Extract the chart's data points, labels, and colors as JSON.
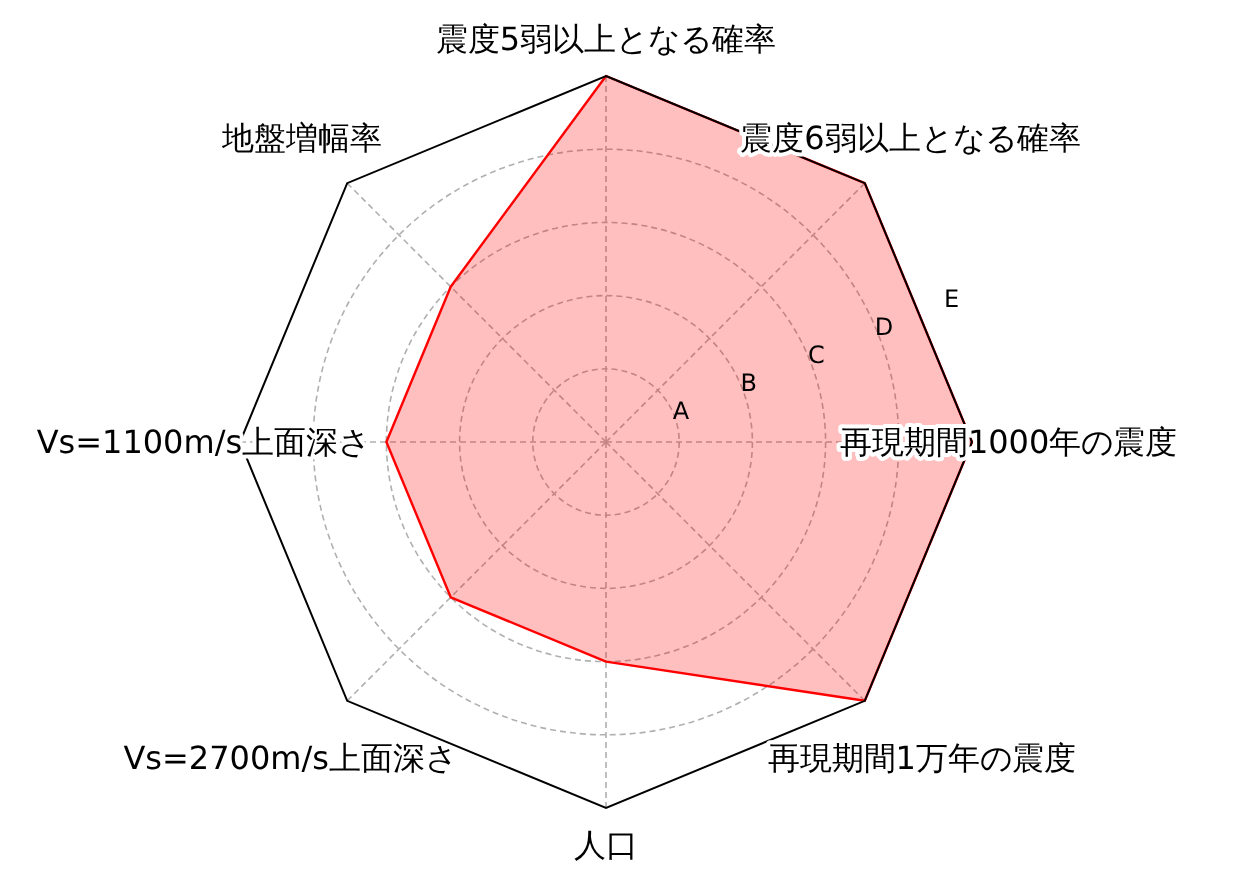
{
  "chart_data": {
    "type": "radar",
    "categories": [
      "震度5弱以上となる確率",
      "震度6弱以上となる確率",
      "再現期間1000年の震度",
      "再現期間1万年の震度",
      "人口",
      "Vs=2700m/s上面深さ",
      "Vs=1100m/s上面深さ",
      "地盤増幅率"
    ],
    "series": [
      {
        "color": "#ff0000",
        "values": [
          5,
          5,
          5,
          5,
          3,
          3,
          3,
          3
        ]
      }
    ],
    "ylim": [
      0,
      5
    ],
    "yticks": [
      {
        "value": 1,
        "label": "A"
      },
      {
        "value": 2,
        "label": "B"
      },
      {
        "value": 3,
        "label": "C"
      },
      {
        "value": 4,
        "label": "D"
      },
      {
        "value": 5,
        "label": "E"
      }
    ],
    "grid": true,
    "marker": "none",
    "line_style": "solid"
  }
}
